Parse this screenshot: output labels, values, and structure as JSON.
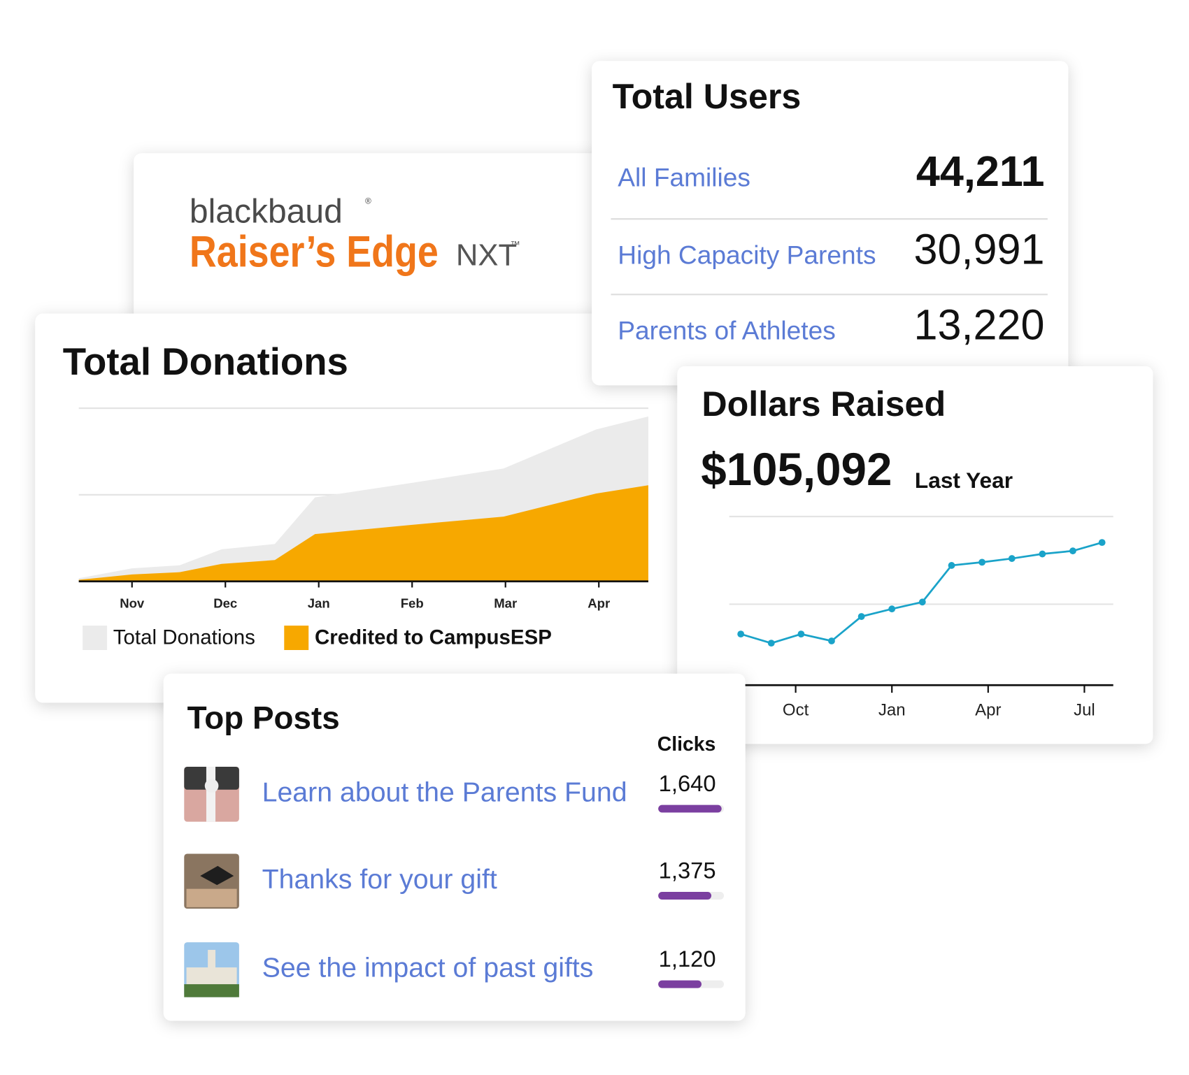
{
  "logo": {
    "brand": "blackbaud",
    "brand_mark": "®",
    "product": "Raiser’s Edge",
    "suffix": "NXT",
    "suffix_mark": "™"
  },
  "total_users": {
    "title": "Total Users",
    "rows": [
      {
        "label": "All Families",
        "value": "44,211"
      },
      {
        "label": "High Capacity Parents",
        "value": "30,991"
      },
      {
        "label": "Parents of Athletes",
        "value": "13,220"
      }
    ]
  },
  "chart_data": [
    {
      "type": "area",
      "title": "Total Donations",
      "x": [
        0.43,
        1,
        1.51,
        1.96,
        2.53,
        2.96,
        3.99,
        4.98,
        5.97,
        6.53
      ],
      "series": [
        {
          "name": "Total Donations",
          "color": "#ebebeb",
          "values": [
            1.8,
            7.5,
            9.3,
            18.5,
            21.6,
            48.5,
            56.8,
            65.2,
            87.7,
            95.2
          ]
        },
        {
          "name": "Credited to CampusESP",
          "color": "#f7a800",
          "values": [
            0.9,
            4.0,
            5.3,
            10.1,
            12.3,
            27.3,
            32.6,
            37.4,
            50.7,
            55.5
          ]
        }
      ],
      "xlim": [
        0.43,
        6.53
      ],
      "xticks": [
        {
          "value": 1,
          "label": "Nov"
        },
        {
          "value": 2,
          "label": "Dec"
        },
        {
          "value": 3,
          "label": "Jan"
        },
        {
          "value": 4,
          "label": "Feb"
        },
        {
          "value": 5,
          "label": "Mar"
        },
        {
          "value": 6,
          "label": "Apr"
        }
      ],
      "ylim": [
        0,
        100
      ],
      "yticks": [
        0,
        50,
        100
      ],
      "grid": true
    },
    {
      "type": "line",
      "title": "Dollars Raised",
      "total": "$105,092",
      "total_note": "Last Year",
      "color": "#1aa3c9",
      "x": [
        8.29,
        9.24,
        10.17,
        11.12,
        12.05,
        13.0,
        13.95,
        14.86,
        15.81,
        16.74,
        17.69,
        18.64,
        19.55
      ],
      "values": [
        30.3,
        24.9,
        30.3,
        26.2,
        40.7,
        45.2,
        49.3,
        71.0,
        72.9,
        75.1,
        77.8,
        79.6,
        84.6
      ],
      "xlim": [
        7.93,
        19.9
      ],
      "xticks": [
        {
          "value": 10,
          "label": "Oct"
        },
        {
          "value": 13,
          "label": "Jan"
        },
        {
          "value": 16,
          "label": "Apr"
        },
        {
          "value": 19,
          "label": "Jul"
        }
      ],
      "ylim": [
        0,
        100
      ],
      "yticks": [
        0,
        48,
        100
      ],
      "grid": true
    }
  ],
  "top_posts": {
    "title": "Top Posts",
    "clicks_header": "Clicks",
    "xlim": [
      0,
      1700
    ],
    "color": "#7b3fa0",
    "posts": [
      {
        "title": "Learn about the Parents Fund",
        "clicks": 1640,
        "clicks_label": "1,640"
      },
      {
        "title": "Thanks for your gift",
        "clicks": 1375,
        "clicks_label": "1,375"
      },
      {
        "title": "See the impact of past gifts",
        "clicks": 1120,
        "clicks_label": "1,120"
      }
    ]
  }
}
